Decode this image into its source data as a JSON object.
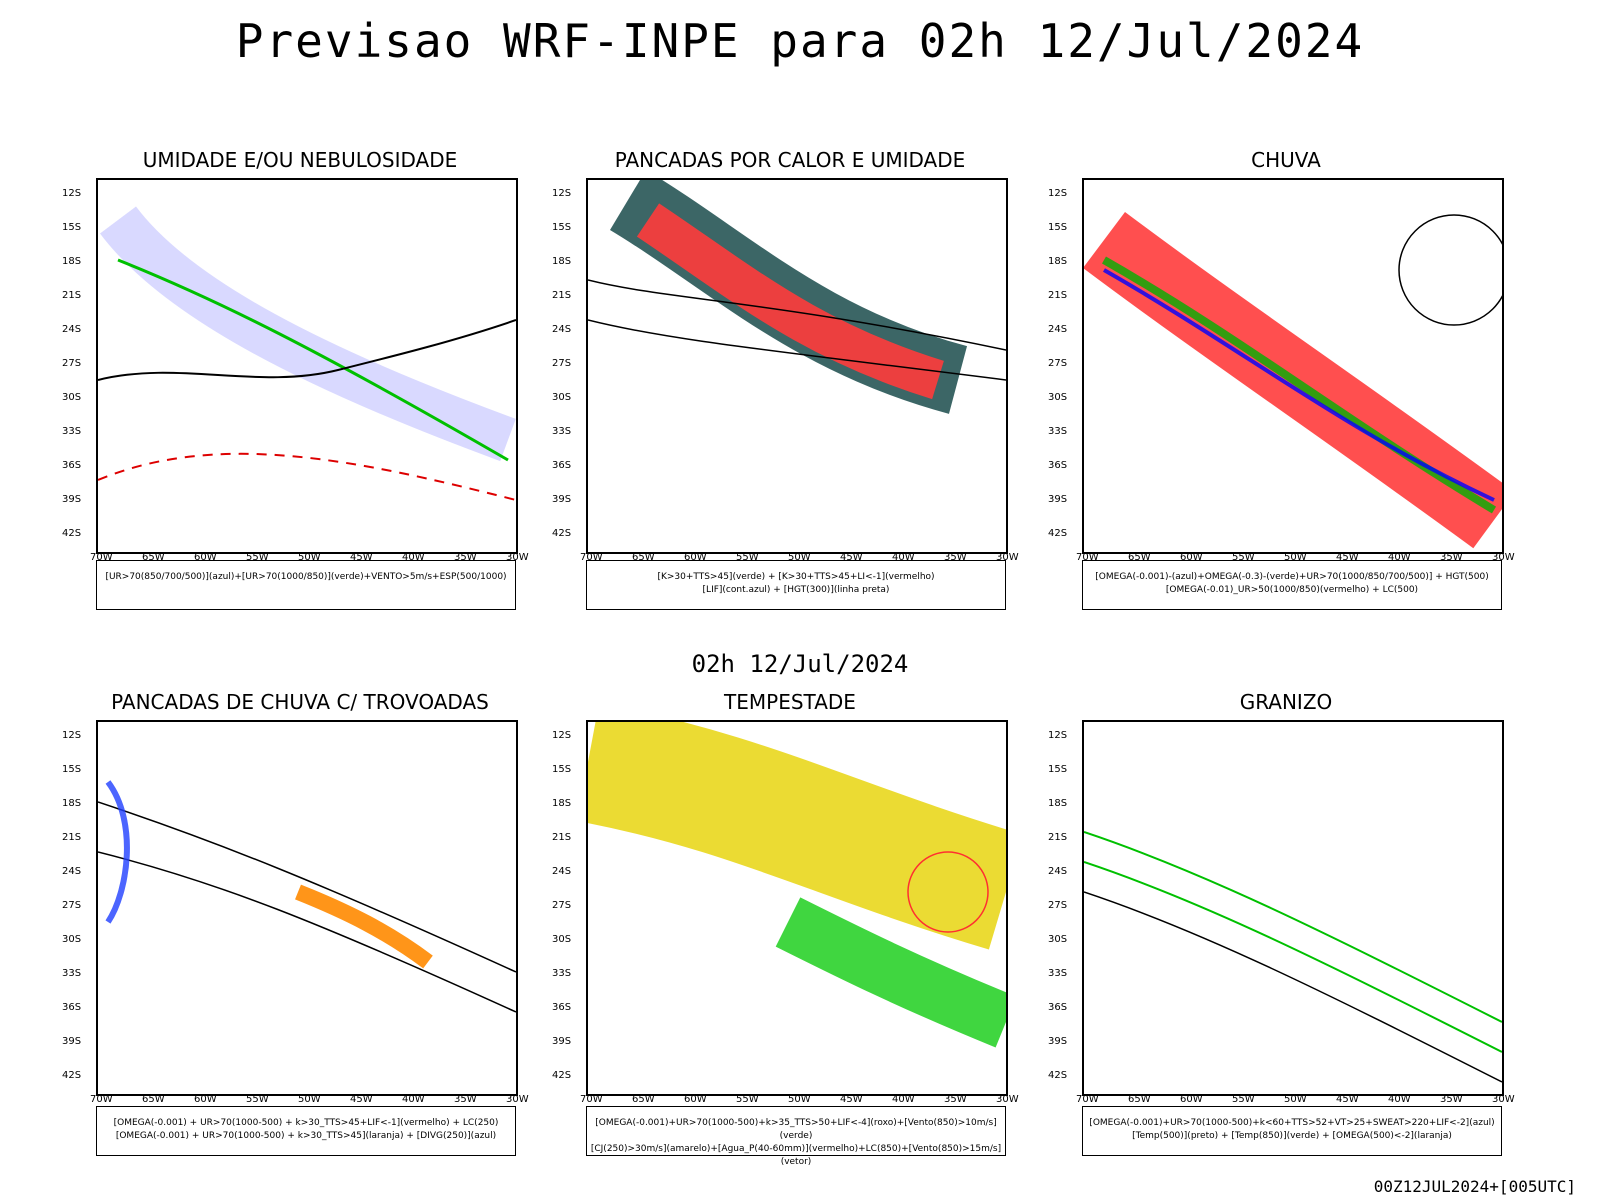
{
  "title": "Previsao WRF-INPE  para 02h 12/Jul/2024",
  "subtitle": "02h 12/Jul/2024",
  "footer": "00Z12JUL2024+[005UTC]",
  "panels": [
    {
      "title": "UMIDADE E/OU NEBULOSIDADE",
      "legend": [
        "[UR>70(850/700/500)](azul)+[UR>70(1000/850)](verde)+VENTO>5m/s+ESP(500/1000)"
      ]
    },
    {
      "title": "PANCADAS POR CALOR E UMIDADE",
      "legend": [
        "[K>30+TTS>45](verde) + [K>30+TTS>45+LI<-1](vermelho)",
        "[LIF](cont.azul) + [HGT(300)](linha preta)"
      ]
    },
    {
      "title": "CHUVA",
      "legend": [
        "[OMEGA(-0.001)-(azul)+OMEGA(-0.3)-(verde)+UR>70(1000/850/700/500)] + HGT(500)",
        "[OMEGA(-0.01)_UR>50(1000/850)(vermelho) + LC(500)"
      ]
    },
    {
      "title": "PANCADAS DE CHUVA C/ TROVOADAS",
      "legend": [
        "[OMEGA(-0.001) + UR>70(1000-500) + k>30_TTS>45+LIF<-1](vermelho) + LC(250)",
        "[OMEGA(-0.001) + UR>70(1000-500) + k>30_TTS>45](laranja) + [DIVG(250)](azul)"
      ]
    },
    {
      "title": "TEMPESTADE",
      "legend": [
        "[OMEGA(-0.001)+UR>70(1000-500)+k>35_TTS>50+LIF<-4](roxo)+[Vento(850)>10m/s](verde)",
        "[CJ(250)>30m/s](amarelo)+[Agua_P(40-60mm)](vermelho)+LC(850)+[Vento(850)>15m/s](vetor)"
      ]
    },
    {
      "title": "GRANIZO",
      "legend": [
        "[OMEGA(-0.001)+UR>70(1000-500)+k<60+TTS>52+VT>25+SWEAT>220+LIF<-2](azul)",
        "[Temp(500)](preto) + [Temp(850)](verde) + [OMEGA(500)<-2](laranja)"
      ]
    }
  ],
  "lat_ticks": [
    "12S",
    "15S",
    "18S",
    "21S",
    "24S",
    "27S",
    "30S",
    "33S",
    "36S",
    "39S",
    "42S"
  ],
  "lon_ticks": [
    "70W",
    "65W",
    "60W",
    "55W",
    "50W",
    "45W",
    "40W",
    "35W",
    "30W"
  ]
}
